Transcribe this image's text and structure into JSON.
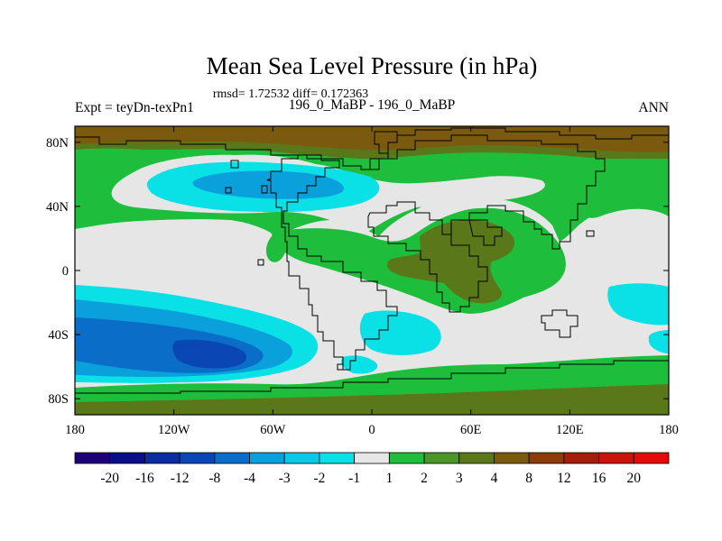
{
  "chart_data": {
    "type": "contour map",
    "title": "Mean Sea Level Pressure (in hPa)",
    "stats_line": "rmsd= 1.72532 diff= 0.172363",
    "left_label": "Expt = teyDn-texPn1",
    "center_label": "196_0_MaBP - 196_0_MaBP",
    "right_label": "ANN",
    "x_ticks": [
      "180",
      "120W",
      "60W",
      "0",
      "60E",
      "120E",
      "180"
    ],
    "x_tick_values": [
      -180,
      -120,
      -60,
      0,
      60,
      120,
      180
    ],
    "y_ticks": [
      "80N",
      "40N",
      "0",
      "40S",
      "80S"
    ],
    "y_tick_values": [
      80,
      40,
      0,
      -40,
      -80
    ],
    "xlim": [
      -180,
      180
    ],
    "ylim": [
      -90,
      90
    ],
    "colorbar": {
      "labels": [
        "-20",
        "-16",
        "-12",
        "-8",
        "-4",
        "-3",
        "-2",
        "-1",
        "1",
        "2",
        "3",
        "4",
        "8",
        "12",
        "16",
        "20"
      ],
      "colors": [
        "#1e0078",
        "#0a0f87",
        "#0a2da0",
        "#0a46b4",
        "#0a6ec8",
        "#0aa0dc",
        "#0ac8e6",
        "#0ae1e6",
        "#e6e6e6",
        "#1ebe3c",
        "#4b9628",
        "#5a7819",
        "#7a5a0f",
        "#8c3c0a",
        "#a51e0a",
        "#c8140a",
        "#e60a0a"
      ]
    }
  }
}
